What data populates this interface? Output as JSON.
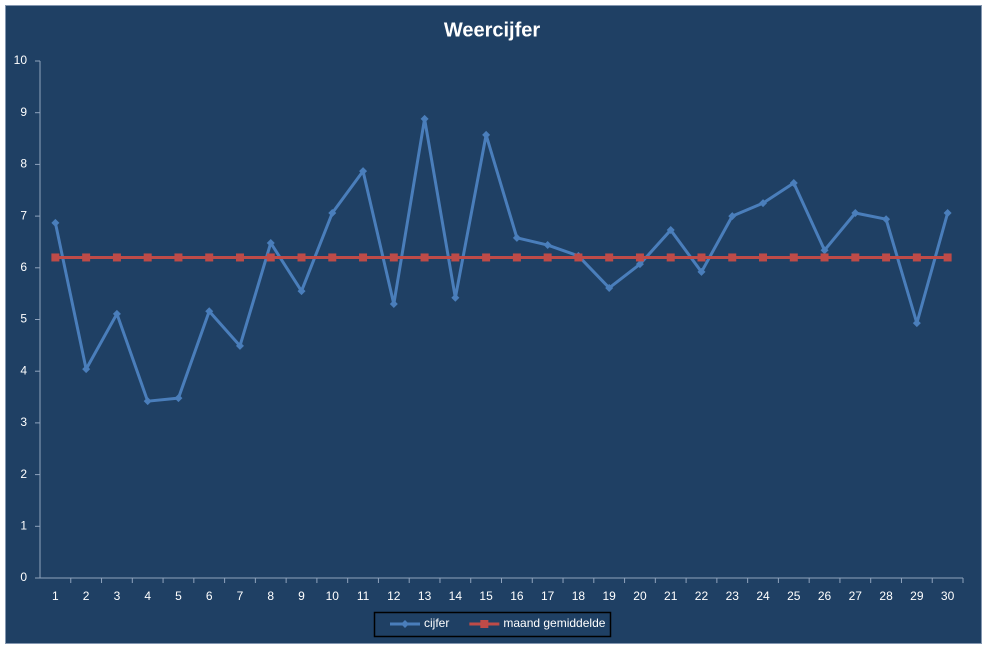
{
  "chart_data": {
    "type": "line",
    "title": "Weercijfer",
    "categories": [
      "1",
      "2",
      "3",
      "4",
      "5",
      "6",
      "7",
      "8",
      "9",
      "10",
      "11",
      "12",
      "13",
      "14",
      "15",
      "16",
      "17",
      "18",
      "19",
      "20",
      "21",
      "22",
      "23",
      "24",
      "25",
      "26",
      "27",
      "28",
      "29",
      "30"
    ],
    "series": [
      {
        "name": "cijfer",
        "color": "#4a7ebb",
        "marker": "diamond",
        "values": [
          6.87,
          4.04,
          5.11,
          3.42,
          3.48,
          5.16,
          4.49,
          6.48,
          5.55,
          7.06,
          7.87,
          5.3,
          8.88,
          5.42,
          8.57,
          6.58,
          6.44,
          6.23,
          5.61,
          6.07,
          6.73,
          5.92,
          7.0,
          7.25,
          7.64,
          6.34,
          7.06,
          6.94,
          4.93,
          7.06
        ]
      },
      {
        "name": "maand gemiddelde",
        "color": "#be4b48",
        "marker": "square",
        "values": [
          6.2,
          6.2,
          6.2,
          6.2,
          6.2,
          6.2,
          6.2,
          6.2,
          6.2,
          6.2,
          6.2,
          6.2,
          6.2,
          6.2,
          6.2,
          6.2,
          6.2,
          6.2,
          6.2,
          6.2,
          6.2,
          6.2,
          6.2,
          6.2,
          6.2,
          6.2,
          6.2,
          6.2,
          6.2,
          6.2
        ]
      }
    ],
    "ylim": [
      0,
      10
    ],
    "yticks": [
      0,
      1,
      2,
      3,
      4,
      5,
      6,
      7,
      8,
      9,
      10
    ],
    "grid": false,
    "legend": "bottom"
  }
}
